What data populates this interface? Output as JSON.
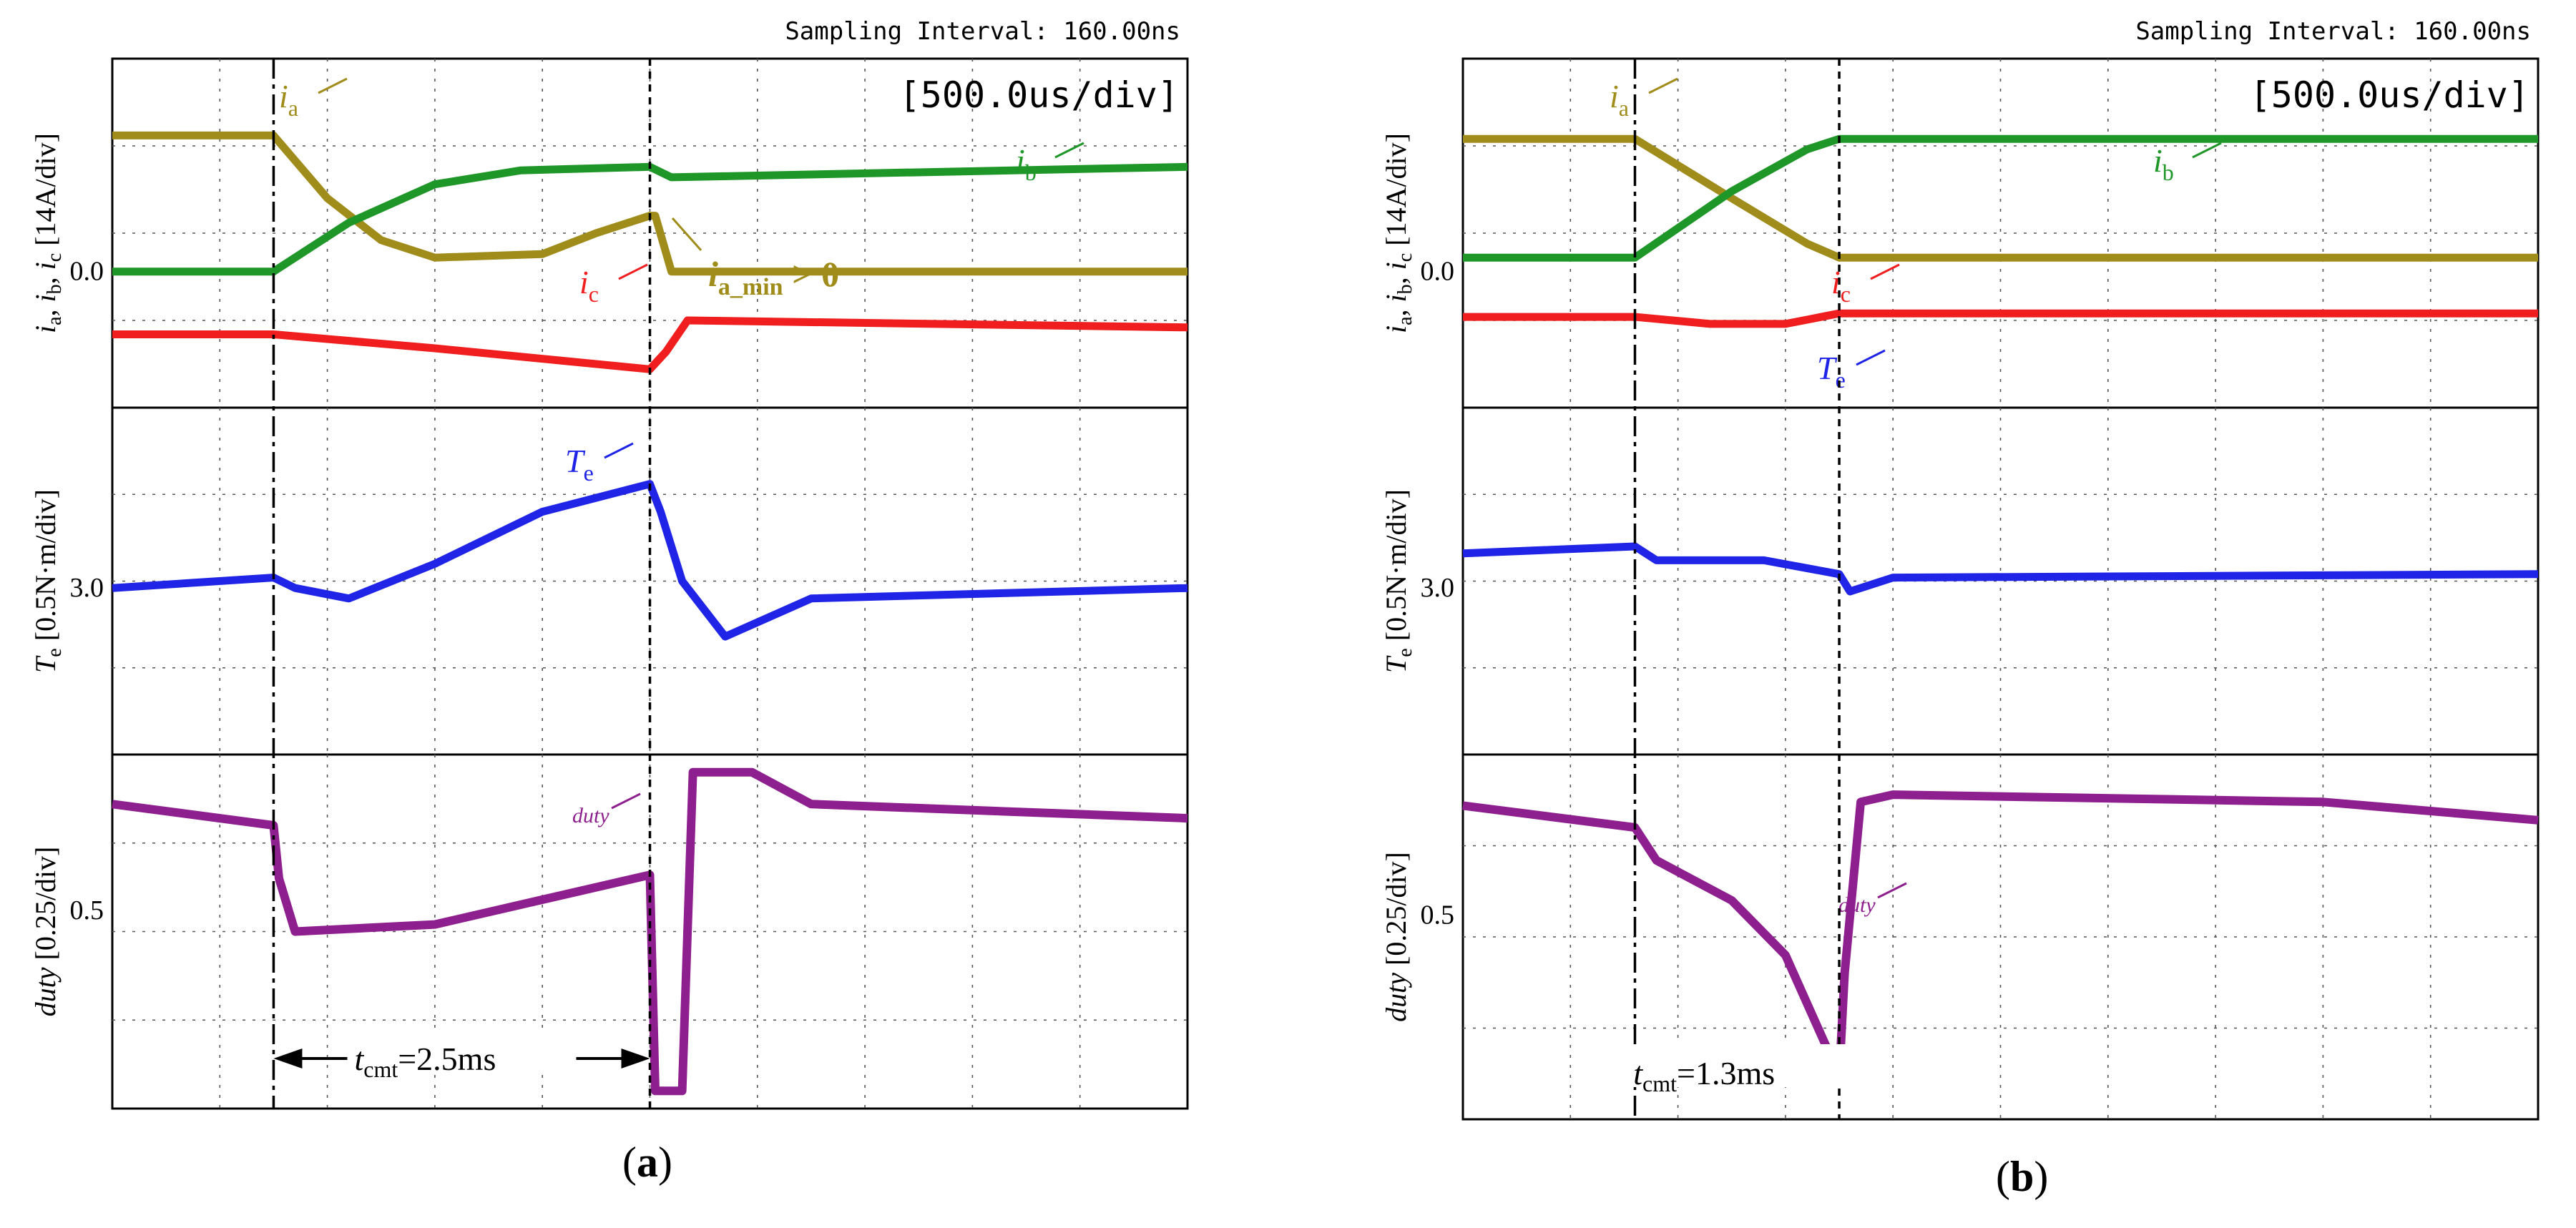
{
  "chart_data": [
    {
      "type": "line",
      "panel_label": "a",
      "sampling_text": "Sampling Interval:  160.00ns",
      "timebase_text": "[500.0us/div]",
      "time_unit": "ms",
      "x_range": [
        0,
        5.0
      ],
      "sections": [
        {
          "id": "currents",
          "ylabel": {
            "prefix_vars": [
              "i",
              "i",
              "i"
            ],
            "subs": [
              "a",
              "b",
              "c"
            ],
            "unit": "[14A/div]"
          },
          "ref_label": "0.0",
          "series": [
            {
              "name": "ia",
              "color": "#a08c1a",
              "y_pct": [
                [
                  0,
                  22
                ],
                [
                  1.5,
                  22
                ],
                [
                  2.0,
                  40
                ],
                [
                  2.5,
                  52
                ],
                [
                  3.0,
                  57
                ],
                [
                  4.0,
                  56
                ],
                [
                  4.5,
                  50
                ],
                [
                  5.0,
                  45
                ],
                [
                  5.05,
                  45
                ],
                [
                  5.2,
                  61
                ],
                [
                  10,
                  61
                ]
              ]
            },
            {
              "name": "ib",
              "color": "#1e9628",
              "y_pct": [
                [
                  0,
                  61
                ],
                [
                  1.5,
                  61
                ],
                [
                  2.2,
                  47
                ],
                [
                  3.0,
                  36
                ],
                [
                  3.8,
                  32
                ],
                [
                  5.0,
                  31
                ],
                [
                  5.2,
                  34
                ],
                [
                  10,
                  31
                ]
              ]
            },
            {
              "name": "ic",
              "color": "#f01e1e",
              "y_pct": [
                [
                  0,
                  79
                ],
                [
                  1.5,
                  79
                ],
                [
                  3.0,
                  83
                ],
                [
                  5.0,
                  89
                ],
                [
                  5.15,
                  84
                ],
                [
                  5.35,
                  75
                ],
                [
                  10,
                  77
                ]
              ]
            }
          ],
          "annotations": [
            {
              "var": "i",
              "sub": "a",
              "color": "#a08c1a"
            },
            {
              "var": "i",
              "sub": "b",
              "color": "#1e9628"
            },
            {
              "var": "i",
              "sub": "c",
              "color": "#f01e1e"
            },
            {
              "var": "i",
              "sub": "a_min",
              "tail": " > 0",
              "color": "#a08c1a"
            }
          ]
        },
        {
          "id": "torque",
          "ylabel": {
            "var": "T",
            "sub": "e",
            "unit": "[0.5N·m/div]"
          },
          "ref_label": "3.0",
          "series": [
            {
              "name": "Te",
              "color": "#1f24e6",
              "y_pct": [
                [
                  0,
                  52
                ],
                [
                  1.5,
                  49
                ],
                [
                  1.7,
                  52
                ],
                [
                  2.2,
                  55
                ],
                [
                  3.0,
                  45
                ],
                [
                  4.0,
                  30
                ],
                [
                  5.0,
                  22
                ],
                [
                  5.1,
                  30
                ],
                [
                  5.3,
                  50
                ],
                [
                  5.7,
                  66
                ],
                [
                  6.5,
                  55
                ],
                [
                  10,
                  52
                ]
              ]
            }
          ],
          "annotations": [
            {
              "var": "T",
              "sub": "e",
              "color": "#1f24e6"
            }
          ]
        },
        {
          "id": "duty",
          "ylabel": {
            "var": "duty",
            "unit": "[0.25/div]"
          },
          "ref_label": "0.5",
          "series": [
            {
              "name": "duty",
              "color": "#8e1f8e",
              "y_pct": [
                [
                  0,
                  14
                ],
                [
                  1.5,
                  20
                ],
                [
                  1.55,
                  35
                ],
                [
                  1.7,
                  50
                ],
                [
                  3.0,
                  48
                ],
                [
                  5.0,
                  34
                ],
                [
                  5.05,
                  95
                ],
                [
                  5.3,
                  95
                ],
                [
                  5.4,
                  5
                ],
                [
                  5.95,
                  5
                ],
                [
                  6.5,
                  14
                ],
                [
                  10,
                  18
                ]
              ]
            }
          ],
          "annotations": [
            {
              "var": "duty",
              "color": "#8e1f8e"
            }
          ]
        }
      ],
      "measurement": {
        "var": "t",
        "sub": "cmt",
        "value": "=2.5ms",
        "start_div": 1.5,
        "end_div": 5.0
      }
    },
    {
      "type": "line",
      "panel_label": "b",
      "sampling_text": "Sampling Interval:  160.00ns",
      "timebase_text": "[500.0us/div]",
      "time_unit": "ms",
      "x_range": [
        0,
        5.0
      ],
      "sections": [
        {
          "id": "currents",
          "ylabel": {
            "prefix_vars": [
              "i",
              "i",
              "i"
            ],
            "subs": [
              "a",
              "b",
              "c"
            ],
            "unit": "[14A/div]"
          },
          "ref_label": "0.0",
          "series": [
            {
              "name": "ia",
              "color": "#a08c1a",
              "y_pct": [
                [
                  0,
                  23
                ],
                [
                  1.6,
                  23
                ],
                [
                  2.5,
                  40
                ],
                [
                  3.2,
                  53
                ],
                [
                  3.5,
                  57
                ],
                [
                  10,
                  57
                ]
              ]
            },
            {
              "name": "ib",
              "color": "#1e9628",
              "y_pct": [
                [
                  0,
                  57
                ],
                [
                  1.6,
                  57
                ],
                [
                  2.5,
                  38
                ],
                [
                  3.2,
                  26
                ],
                [
                  3.5,
                  23
                ],
                [
                  10,
                  23
                ]
              ]
            },
            {
              "name": "ic",
              "color": "#f01e1e",
              "y_pct": [
                [
                  0,
                  74
                ],
                [
                  1.6,
                  74
                ],
                [
                  2.3,
                  76
                ],
                [
                  3.0,
                  76
                ],
                [
                  3.5,
                  73
                ],
                [
                  10,
                  73
                ]
              ]
            }
          ],
          "annotations": [
            {
              "var": "i",
              "sub": "a",
              "color": "#a08c1a"
            },
            {
              "var": "i",
              "sub": "b",
              "color": "#1e9628"
            },
            {
              "var": "i",
              "sub": "c",
              "color": "#f01e1e"
            }
          ]
        },
        {
          "id": "torque",
          "ylabel": {
            "var": "T",
            "sub": "e",
            "unit": "[0.5N·m/div]"
          },
          "ref_label": "3.0",
          "series": [
            {
              "name": "Te",
              "color": "#1f24e6",
              "y_pct": [
                [
                  0,
                  42
                ],
                [
                  1.6,
                  40
                ],
                [
                  1.8,
                  44
                ],
                [
                  2.8,
                  44
                ],
                [
                  3.5,
                  48
                ],
                [
                  3.6,
                  53
                ],
                [
                  4.0,
                  49
                ],
                [
                  10,
                  48
                ]
              ]
            }
          ],
          "annotations": [
            {
              "var": "T",
              "sub": "e",
              "color": "#1f24e6"
            }
          ]
        },
        {
          "id": "duty",
          "ylabel": {
            "var": "duty",
            "unit": "[0.25/div]"
          },
          "ref_label": "0.5",
          "series": [
            {
              "name": "duty",
              "color": "#8e1f8e",
              "y_pct": [
                [
                  0,
                  14
                ],
                [
                  1.6,
                  20
                ],
                [
                  1.8,
                  29
                ],
                [
                  2.5,
                  40
                ],
                [
                  3.0,
                  55
                ],
                [
                  3.5,
                  88
                ],
                [
                  3.55,
                  60
                ],
                [
                  3.7,
                  13
                ],
                [
                  4.0,
                  11
                ],
                [
                  8,
                  13
                ],
                [
                  10,
                  18
                ]
              ]
            }
          ],
          "annotations": [
            {
              "var": "duty",
              "color": "#8e1f8e"
            }
          ]
        }
      ],
      "measurement": {
        "var": "t",
        "sub": "cmt",
        "value": "=1.3ms",
        "start_div": 1.6,
        "end_div": 3.5
      }
    }
  ]
}
